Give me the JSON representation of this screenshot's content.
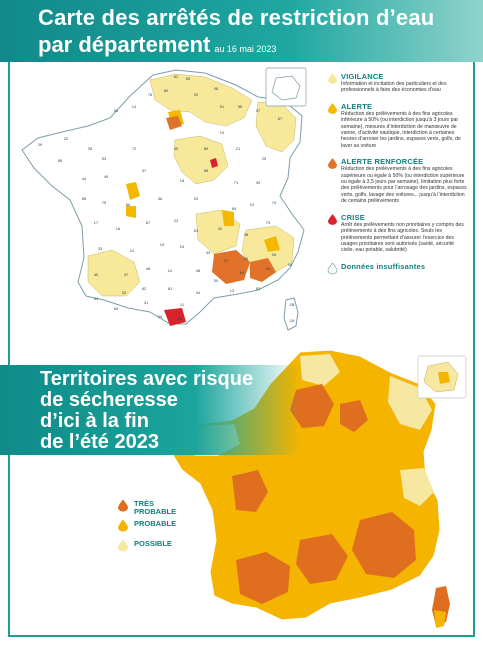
{
  "header": {
    "title_line1": "Carte des arrêtés de restriction d’eau",
    "title_line2": "par département",
    "date": "au 16 mai 2023"
  },
  "legend_restrictions": [
    {
      "key": "vigilance",
      "title": "VIGILANCE",
      "desc": "Information et incitation des particuliers et des professionnels à faire des économies d’eau",
      "color": "#f7e89a"
    },
    {
      "key": "alerte",
      "title": "ALERTE",
      "desc": "Réduction des prélèvements à des fins agricoles inférieure à 50% (ou interdiction jusqu’à 3 jours par semaine), mesures d’interdiction de manœuvre de vanne, d’activité nautique, interdiction à certaines heures d’arroser les jardins, espaces verts, golfs, de laver sa voiture",
      "color": "#f4b800"
    },
    {
      "key": "alerte_renforcee",
      "title": "ALERTE RENFORCÉE",
      "desc": "Réduction des prélèvements à des fins agricoles supérieure ou égale à 50% (ou interdiction supérieure ou égale à 3,5 jours par semaine), limitation plus forte des prélèvements pour l’arrosage des jardins, espaces verts, golfs, lavage des voitures... jusqu’à l’interdiction de certains prélèvements",
      "color": "#e0722a"
    },
    {
      "key": "crise",
      "title": "CRISE",
      "desc": "Arrêt des prélèvements non prioritaires y compris des prélèvements à des fins agricoles. Seuls les prélèvements permettant d’assurer l’exercice des usages prioritaires sont autorisés (santé, sécurité civile, eau potable, salubrité)",
      "color": "#d7232b"
    },
    {
      "key": "insuffisant",
      "title": "Données insuffisantes",
      "desc": "",
      "color": "#ffffff"
    }
  ],
  "secheresse": {
    "title_lines": [
      "Territoires avec risque",
      "de sécheresse",
      "d’ici à la fin",
      "de l’été 2023"
    ],
    "legend": [
      {
        "key": "tres_probable",
        "label_line1": "TRÈS",
        "label_line2": "PROBABLE",
        "color": "#df6f1f"
      },
      {
        "key": "probable",
        "label_line1": "PROBABLE",
        "label_line2": "",
        "color": "#f4b400"
      },
      {
        "key": "possible",
        "label_line1": "POSSIBLE",
        "label_line2": "",
        "color": "#f6e7a1"
      }
    ]
  },
  "map1_dept_labels": [
    {
      "id": "a",
      "text": "62"
    },
    {
      "id": "b",
      "text": "59"
    },
    {
      "id": "c",
      "text": "80"
    },
    {
      "id": "d",
      "text": "76"
    },
    {
      "id": "e",
      "text": "02"
    },
    {
      "id": "f",
      "text": "08"
    },
    {
      "id": "g",
      "text": "51"
    },
    {
      "id": "h",
      "text": "55"
    },
    {
      "id": "i",
      "text": "57"
    },
    {
      "id": "j",
      "text": "67"
    },
    {
      "id": "k",
      "text": "14"
    },
    {
      "id": "l",
      "text": "50"
    },
    {
      "id": "m",
      "text": "29"
    },
    {
      "id": "n",
      "text": "22"
    },
    {
      "id": "o",
      "text": "56"
    },
    {
      "id": "p",
      "text": "35"
    },
    {
      "id": "q",
      "text": "53"
    },
    {
      "id": "r",
      "text": "72"
    },
    {
      "id": "s",
      "text": "45"
    },
    {
      "id": "t",
      "text": "89"
    },
    {
      "id": "u",
      "text": "10"
    },
    {
      "id": "v",
      "text": "21"
    },
    {
      "id": "w",
      "text": "25"
    },
    {
      "id": "x",
      "text": "44"
    },
    {
      "id": "y",
      "text": "49"
    },
    {
      "id": "z",
      "text": "37"
    },
    {
      "id": "aa",
      "text": "18"
    },
    {
      "id": "ab",
      "text": "58"
    },
    {
      "id": "ac",
      "text": "71"
    },
    {
      "id": "ad",
      "text": "39"
    },
    {
      "id": "ae",
      "text": "85"
    },
    {
      "id": "af",
      "text": "79"
    },
    {
      "id": "ag",
      "text": "86"
    },
    {
      "id": "ah",
      "text": "36"
    },
    {
      "id": "ai",
      "text": "03"
    },
    {
      "id": "aj",
      "text": "69"
    },
    {
      "id": "ak",
      "text": "01"
    },
    {
      "id": "al",
      "text": "74"
    },
    {
      "id": "am",
      "text": "17"
    },
    {
      "id": "an",
      "text": "16"
    },
    {
      "id": "ao",
      "text": "87"
    },
    {
      "id": "ap",
      "text": "23"
    },
    {
      "id": "aq",
      "text": "63"
    },
    {
      "id": "ar",
      "text": "42"
    },
    {
      "id": "as",
      "text": "38"
    },
    {
      "id": "at",
      "text": "73"
    },
    {
      "id": "au",
      "text": "33"
    },
    {
      "id": "av",
      "text": "24"
    },
    {
      "id": "aw",
      "text": "19"
    },
    {
      "id": "ax",
      "text": "15"
    },
    {
      "id": "ay",
      "text": "43"
    },
    {
      "id": "az",
      "text": "07"
    },
    {
      "id": "ba",
      "text": "26"
    },
    {
      "id": "bb",
      "text": "05"
    },
    {
      "id": "bc",
      "text": "40"
    },
    {
      "id": "bd",
      "text": "47"
    },
    {
      "id": "be",
      "text": "46"
    },
    {
      "id": "bf",
      "text": "12"
    },
    {
      "id": "bg",
      "text": "48"
    },
    {
      "id": "bh",
      "text": "30"
    },
    {
      "id": "bi",
      "text": "84"
    },
    {
      "id": "bj",
      "text": "04"
    },
    {
      "id": "bk",
      "text": "06"
    },
    {
      "id": "bl",
      "text": "64"
    },
    {
      "id": "bm",
      "text": "32"
    },
    {
      "id": "bn",
      "text": "82"
    },
    {
      "id": "bo",
      "text": "81"
    },
    {
      "id": "bp",
      "text": "34"
    },
    {
      "id": "bq",
      "text": "13"
    },
    {
      "id": "br",
      "text": "83"
    },
    {
      "id": "bs",
      "text": "65"
    },
    {
      "id": "bt",
      "text": "31"
    },
    {
      "id": "bu",
      "text": "11"
    },
    {
      "id": "bv",
      "text": "09"
    },
    {
      "id": "bw",
      "text": "66"
    },
    {
      "id": "bx",
      "text": "2B"
    },
    {
      "id": "by",
      "text": "2A"
    }
  ]
}
